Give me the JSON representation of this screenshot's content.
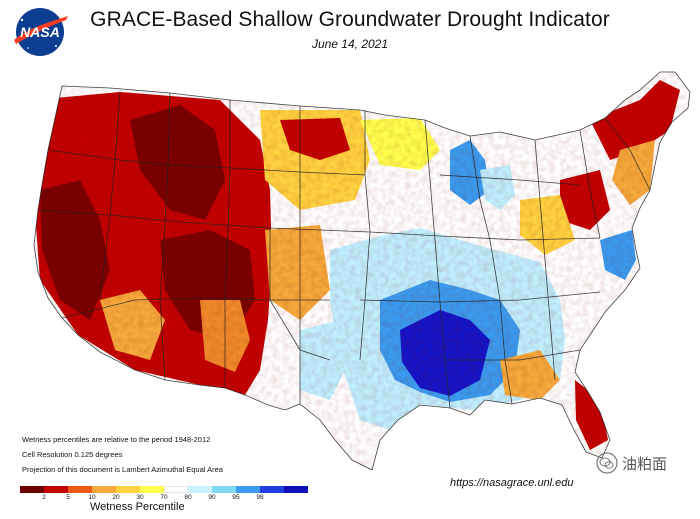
{
  "header": {
    "logo_text": "NASA",
    "title": "GRACE-Based Shallow Groundwater Drought Indicator",
    "date": "June 14, 2021"
  },
  "notes": [
    "Wetness percentiles are relative to the period 1948-2012",
    "Cell Resolution 0.125 degrees",
    "Projection of this document is Lambert Azimuthal Equal Area"
  ],
  "legend": {
    "title": "Wetness Percentile",
    "ticks": [
      "2",
      "5",
      "10",
      "20",
      "30",
      "70",
      "80",
      "90",
      "95",
      "98"
    ],
    "colors": [
      "#6e0000",
      "#c30000",
      "#ef5a10",
      "#f6a93b",
      "#ffd23f",
      "#ffff4d",
      "#ffffff",
      "#c9f2ff",
      "#7fd9f2",
      "#3a9bf0",
      "#1f3fe0",
      "#1010b8"
    ]
  },
  "source_url": "https://nasagrace.unl.edu",
  "watermark": "油粕面",
  "palette": {
    "drought_dark": "#7a0000",
    "drought_red": "#c20000",
    "dry_orange": "#f08a2a",
    "dry_yellow": "#ffd23f",
    "normal": "#ffffff",
    "wet_light": "#bfefff",
    "wet_mid": "#3a9bf0",
    "wet_dark": "#1414c8"
  }
}
